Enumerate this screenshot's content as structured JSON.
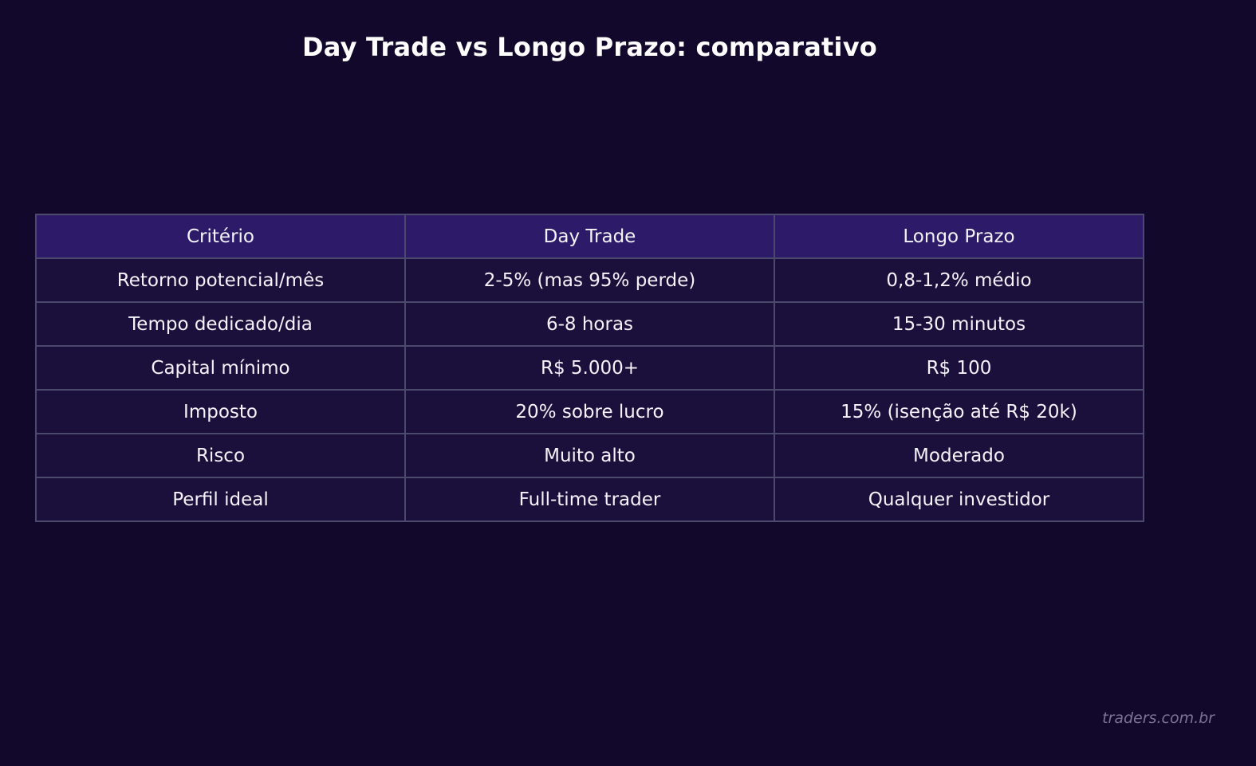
{
  "title": "Day Trade vs Longo Prazo: comparativo",
  "watermark": "traders.com.br",
  "colors": {
    "background": "#12082b",
    "header_bg": "#2d1b69",
    "row_bg": "#1b103b",
    "border": "#4b4a6c",
    "text": "#f4f2fa",
    "watermark": "#7c7394"
  },
  "table": {
    "headers": [
      "Critério",
      "Day Trade",
      "Longo Prazo"
    ],
    "rows": [
      [
        "Retorno potencial/mês",
        "2-5% (mas 95% perde)",
        "0,8-1,2% médio"
      ],
      [
        "Tempo dedicado/dia",
        "6-8 horas",
        "15-30 minutos"
      ],
      [
        "Capital mínimo",
        "R$ 5.000+",
        "R$ 100"
      ],
      [
        "Imposto",
        "20% sobre lucro",
        "15% (isenção até R$ 20k)"
      ],
      [
        "Risco",
        "Muito alto",
        "Moderado"
      ],
      [
        "Perfil ideal",
        "Full-time trader",
        "Qualquer investidor"
      ]
    ]
  },
  "chart_data": {
    "type": "table",
    "title": "Day Trade vs Longo Prazo: comparativo",
    "columns": [
      "Critério",
      "Day Trade",
      "Longo Prazo"
    ],
    "rows": [
      [
        "Retorno potencial/mês",
        "2-5% (mas 95% perde)",
        "0,8-1,2% médio"
      ],
      [
        "Tempo dedicado/dia",
        "6-8 horas",
        "15-30 minutos"
      ],
      [
        "Capital mínimo",
        "R$ 5.000+",
        "R$ 100"
      ],
      [
        "Imposto",
        "20% sobre lucro",
        "15% (isenção até R$ 20k)"
      ],
      [
        "Risco",
        "Muito alto",
        "Moderado"
      ],
      [
        "Perfil ideal",
        "Full-time trader",
        "Qualquer investidor"
      ]
    ],
    "annotations": [
      "traders.com.br"
    ]
  }
}
